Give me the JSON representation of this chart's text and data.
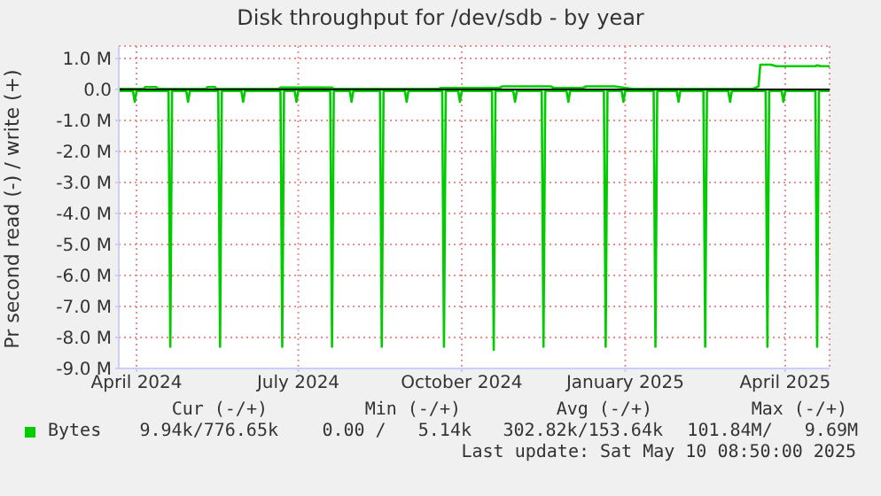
{
  "chart_data": {
    "type": "line",
    "title": "Disk throughput for /dev/sdb - by year",
    "ylabel": "Pr second read (-) / write (+)",
    "xlim": [
      "2024-03-22",
      "2025-04-26"
    ],
    "xticks": [
      {
        "value": "2024-04-01",
        "label": "April 2024"
      },
      {
        "value": "2024-07-01",
        "label": "July 2024"
      },
      {
        "value": "2024-10-01",
        "label": "October 2024"
      },
      {
        "value": "2025-01-01",
        "label": "January 2025"
      },
      {
        "value": "2025-04-01",
        "label": "April 2025"
      }
    ],
    "ylim": [
      -9,
      1.4
    ],
    "yticks": [
      {
        "value": 1,
        "label": "1.0 M"
      },
      {
        "value": 0,
        "label": "0.0"
      },
      {
        "value": -1,
        "label": "-1.0 M"
      },
      {
        "value": -2,
        "label": "-2.0 M"
      },
      {
        "value": -3,
        "label": "-3.0 M"
      },
      {
        "value": -4,
        "label": "-4.0 M"
      },
      {
        "value": -5,
        "label": "-5.0 M"
      },
      {
        "value": -6,
        "label": "-6.0 M"
      },
      {
        "value": -7,
        "label": "-7.0 M"
      },
      {
        "value": -8,
        "label": "-8.0 M"
      },
      {
        "value": -9,
        "label": "-9.0 M"
      }
    ],
    "grid": true,
    "legend": "bottom left",
    "marker": "none",
    "line_style": "solid",
    "ref_lines": [
      {
        "axis": "y",
        "value": 0,
        "color": "#000000"
      }
    ],
    "series": [
      {
        "name": "Bytes",
        "color": "#00cc00",
        "x": [
          "2024-03-22",
          "2024-04-05",
          "2024-04-06",
          "2024-04-12",
          "2024-04-13",
          "2024-05-10",
          "2024-05-11",
          "2024-05-15",
          "2024-05-16",
          "2024-06-20",
          "2024-06-21",
          "2024-07-20",
          "2024-07-21",
          "2024-09-18",
          "2024-09-19",
          "2024-10-22",
          "2024-10-24",
          "2024-11-20",
          "2024-11-22",
          "2024-12-08",
          "2024-12-10",
          "2024-12-26",
          "2025-01-05",
          "2025-03-14",
          "2025-03-17",
          "2025-03-18",
          "2025-03-24",
          "2025-03-27",
          "2025-04-18",
          "2025-04-19",
          "2025-04-21",
          "2025-04-26"
        ],
        "values": [
          0.02,
          0.02,
          0.08,
          0.08,
          0.02,
          0.02,
          0.08,
          0.08,
          0.02,
          0.02,
          0.06,
          0.06,
          0.02,
          0.02,
          0.05,
          0.05,
          0.1,
          0.1,
          0.05,
          0.05,
          0.1,
          0.1,
          0.02,
          0.02,
          0.1,
          0.8,
          0.8,
          0.75,
          0.75,
          0.78,
          0.75,
          0.75
        ]
      },
      {
        "color": "#00cc00",
        "x": [
          "2024-03-22",
          "2024-03-30",
          "2024-03-31",
          "2024-04-01",
          "2024-04-19",
          "2024-04-20",
          "2024-04-21",
          "2024-04-29",
          "2024-04-30",
          "2024-05-01",
          "2024-05-17",
          "2024-05-18",
          "2024-05-19",
          "2024-05-30",
          "2024-05-31",
          "2024-06-01",
          "2024-06-21",
          "2024-06-22",
          "2024-06-23",
          "2024-06-29",
          "2024-06-30",
          "2024-07-01",
          "2024-07-19",
          "2024-07-20",
          "2024-07-21",
          "2024-07-30",
          "2024-07-31",
          "2024-08-01",
          "2024-08-16",
          "2024-08-17",
          "2024-08-18",
          "2024-08-30",
          "2024-08-31",
          "2024-09-01",
          "2024-09-20",
          "2024-09-21",
          "2024-09-22",
          "2024-09-29",
          "2024-09-30",
          "2024-10-01",
          "2024-10-18",
          "2024-10-19",
          "2024-10-20",
          "2024-10-30",
          "2024-10-31",
          "2024-11-01",
          "2024-11-15",
          "2024-11-16",
          "2024-11-17",
          "2024-11-29",
          "2024-11-30",
          "2024-12-01",
          "2024-12-20",
          "2024-12-21",
          "2024-12-22",
          "2024-12-30",
          "2024-12-31",
          "2025-01-01",
          "2025-01-17",
          "2025-01-18",
          "2025-01-19",
          "2025-01-30",
          "2025-01-31",
          "2025-02-01",
          "2025-02-14",
          "2025-02-15",
          "2025-02-16",
          "2025-02-28",
          "2025-03-01",
          "2025-03-02",
          "2025-03-21",
          "2025-03-22",
          "2025-03-23",
          "2025-03-30",
          "2025-03-31",
          "2025-04-01",
          "2025-04-18",
          "2025-04-19",
          "2025-04-20",
          "2025-04-26"
        ],
        "values": [
          -0.05,
          -0.05,
          -0.4,
          -0.05,
          -0.05,
          -8.3,
          -0.05,
          -0.05,
          -0.4,
          -0.05,
          -0.05,
          -8.3,
          -0.05,
          -0.05,
          -0.4,
          -0.05,
          -0.05,
          -8.3,
          -0.05,
          -0.05,
          -0.4,
          -0.05,
          -0.05,
          -8.3,
          -0.05,
          -0.05,
          -0.4,
          -0.05,
          -0.05,
          -8.3,
          -0.05,
          -0.05,
          -0.4,
          -0.05,
          -0.05,
          -8.3,
          -0.05,
          -0.05,
          -0.4,
          -0.05,
          -0.05,
          -8.4,
          -0.05,
          -0.05,
          -0.4,
          -0.05,
          -0.05,
          -8.3,
          -0.05,
          -0.05,
          -0.4,
          -0.05,
          -0.05,
          -8.3,
          -0.05,
          -0.05,
          -0.4,
          -0.05,
          -0.05,
          -8.3,
          -0.05,
          -0.05,
          -0.4,
          -0.05,
          -0.05,
          -8.3,
          -0.05,
          -0.05,
          -0.4,
          -0.05,
          -0.05,
          -8.3,
          -0.05,
          -0.05,
          -0.4,
          -0.05,
          -0.05,
          -8.3,
          -0.05,
          -0.05
        ]
      }
    ],
    "annotations": [
      "Cur (-/+)",
      "Min (-/+)",
      "Avg (-/+)",
      "Max (-/+)",
      "9.94k/776.65k",
      "0.00 /   5.14k",
      "302.82k/153.64k",
      "101.84M/   9.69M",
      "Last update: Sat May 10 08:50:00 2025"
    ]
  }
}
